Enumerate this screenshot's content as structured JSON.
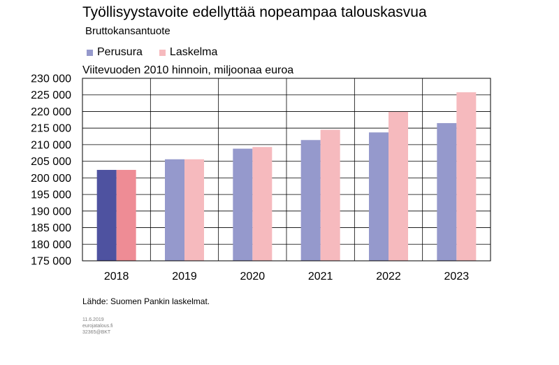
{
  "title": "Työllisyystavoite edellyttää nopeampaa talouskasvua",
  "subtitle": "Bruttokansantuote",
  "unit_label": "Viitevuoden 2010 hinnoin, miljoonaa euroa",
  "source": "Lähde: Suomen Pankin laskelmat.",
  "footer": {
    "date": "11.6.2019",
    "site": "eurojatalous.fi",
    "code": "32365@BKT"
  },
  "colors": {
    "perusura": "#9599cc",
    "laskelma": "#f6babe",
    "perusura_first": "#4e52a0",
    "laskelma_first": "#ee8c95"
  },
  "chart_data": {
    "type": "bar",
    "categories": [
      "2018",
      "2019",
      "2020",
      "2021",
      "2022",
      "2023"
    ],
    "series": [
      {
        "name": "Perusura",
        "values": [
          202400,
          205600,
          208800,
          211400,
          213700,
          216500
        ]
      },
      {
        "name": "Laskelma",
        "values": [
          202400,
          205600,
          209300,
          214500,
          219900,
          225800
        ]
      }
    ],
    "ylim": [
      175000,
      230000
    ],
    "yticks": [
      "175 000",
      "180 000",
      "185 000",
      "190 000",
      "195 000",
      "200 000",
      "205 000",
      "210 000",
      "215 000",
      "220 000",
      "225 000",
      "230 000"
    ],
    "grid": true,
    "legend_position": "top-left"
  }
}
